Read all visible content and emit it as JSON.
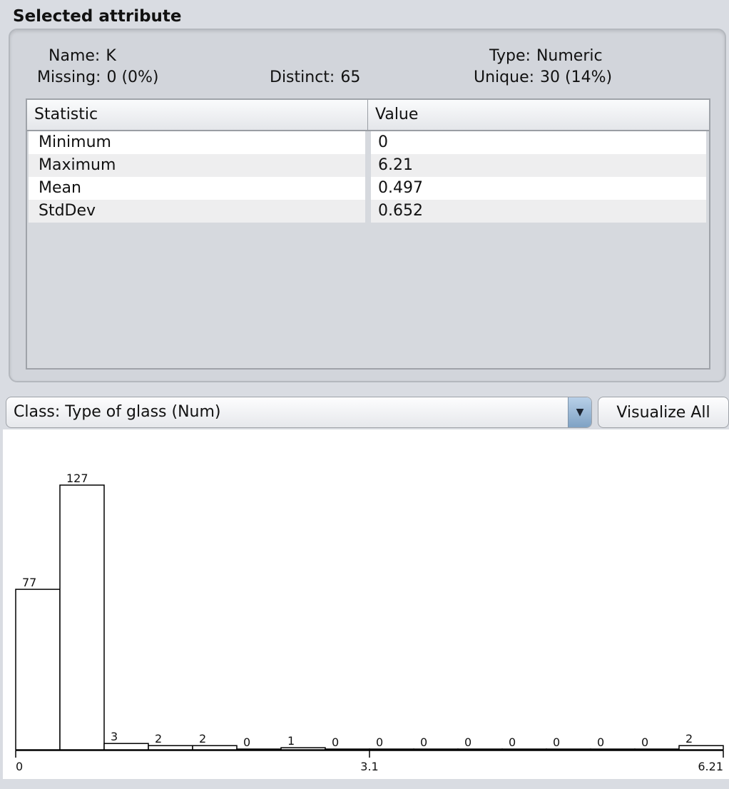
{
  "panel": {
    "title": "Selected attribute",
    "name_label": "Name:",
    "name_value": "K",
    "type_label": "Type:",
    "type_value": "Numeric",
    "missing_label": "Missing:",
    "missing_value": "0 (0%)",
    "distinct_label": "Distinct:",
    "distinct_value": "65",
    "unique_label": "Unique:",
    "unique_value": "30 (14%)"
  },
  "table": {
    "headers": [
      "Statistic",
      "Value"
    ],
    "rows": [
      {
        "stat": "Minimum",
        "value": "0"
      },
      {
        "stat": "Maximum",
        "value": "6.21"
      },
      {
        "stat": "Mean",
        "value": "0.497"
      },
      {
        "stat": "StdDev",
        "value": "0.652"
      }
    ]
  },
  "class_select": {
    "value": "Class: Type of glass (Num)"
  },
  "visualize_button": "Visualize All",
  "chart_data": {
    "type": "bar",
    "categories": [
      "0-0.388",
      "0.388-0.776",
      "0.776-1.164",
      "1.164-1.553",
      "1.553-1.941",
      "1.941-2.329",
      "2.329-2.717",
      "2.717-3.105",
      "3.105-3.493",
      "3.493-3.881",
      "3.881-4.269",
      "4.269-4.658",
      "4.658-5.046",
      "5.046-5.434",
      "5.434-5.822",
      "5.822-6.21"
    ],
    "values": [
      77,
      127,
      3,
      2,
      2,
      0,
      1,
      0,
      0,
      0,
      0,
      0,
      0,
      0,
      0,
      2
    ],
    "xlim": [
      0,
      6.21
    ],
    "ylim": [
      0,
      127
    ],
    "x_tick_labels": [
      "0",
      "3.1",
      "6.21"
    ],
    "title": "",
    "xlabel": "",
    "ylabel": "",
    "colors": {
      "bar_fill": "#ffffff",
      "bar_stroke": "#000000"
    }
  }
}
